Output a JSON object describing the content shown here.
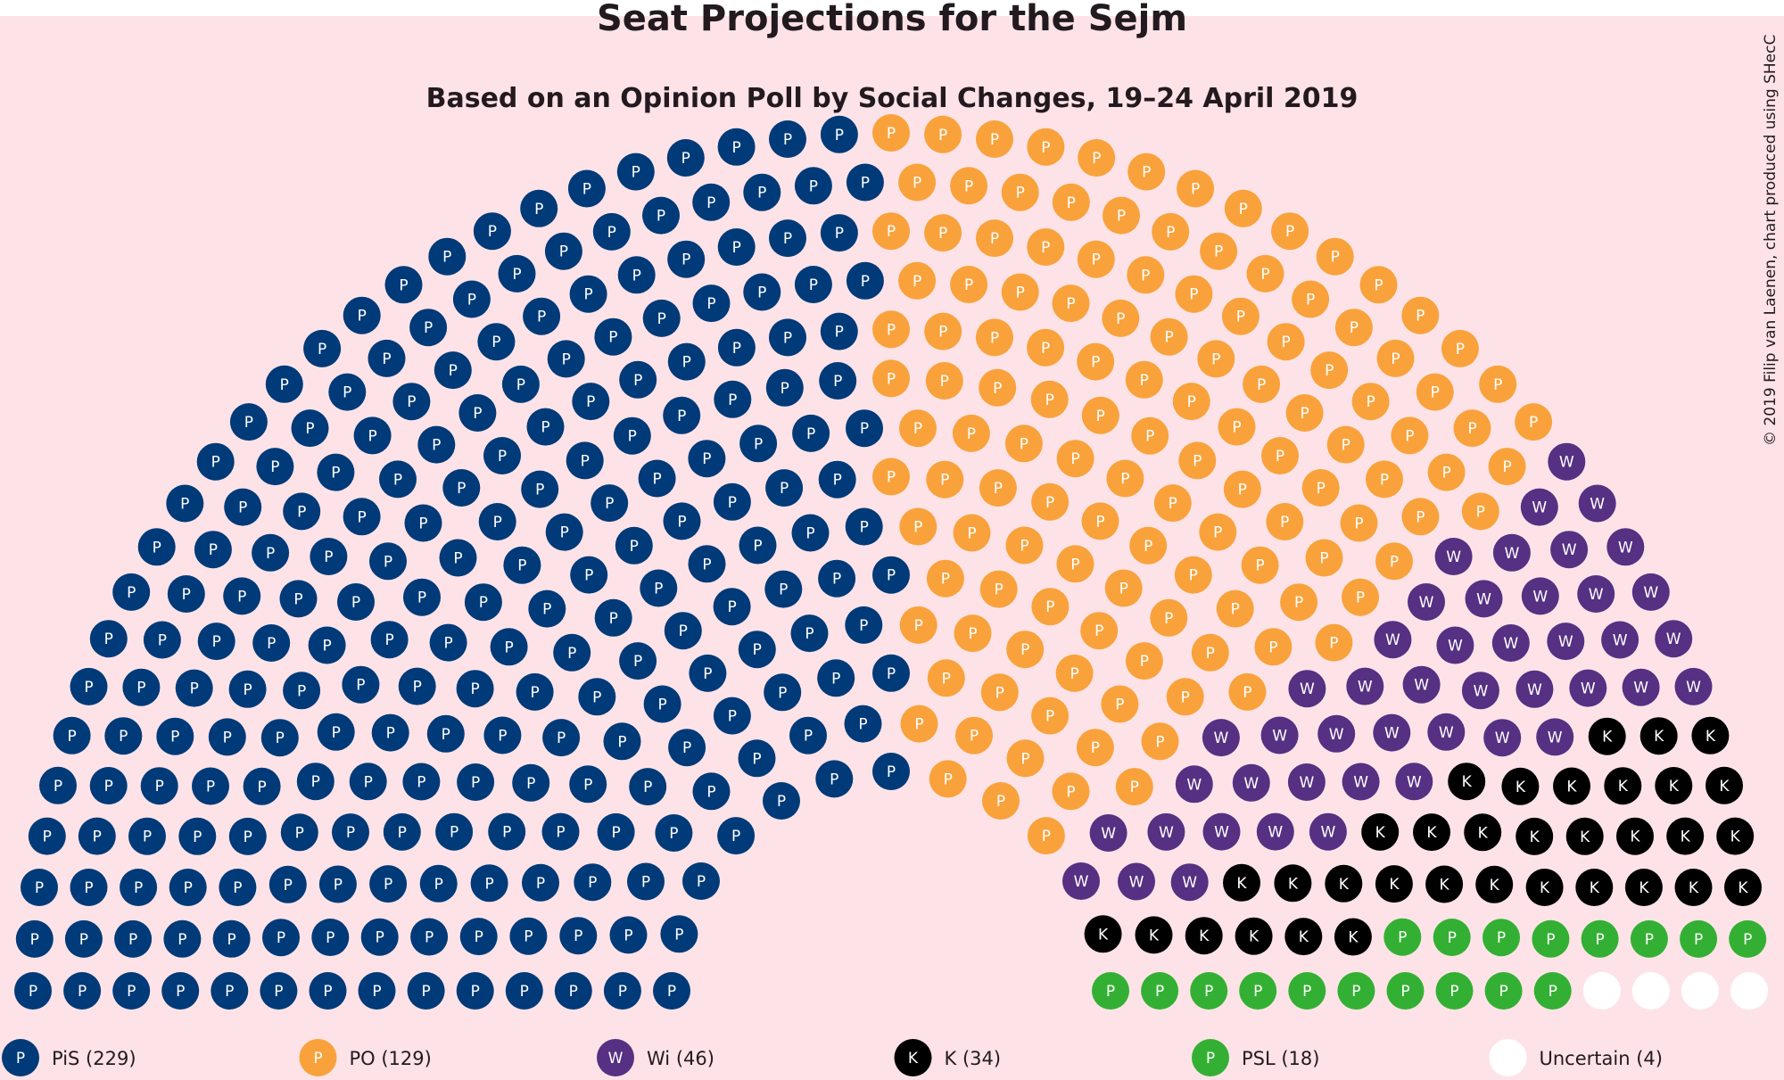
{
  "chart_data": {
    "type": "parliament",
    "title": "Seat Projections for the Sejm",
    "subtitle": "Based on an Opinion Poll by Social Changes, 19–24 April 2019",
    "credit": "© 2019 Filip van Laenen, chart produced using SHecC",
    "total_seats": 460,
    "background_color": "#fde3e7",
    "parties": [
      {
        "id": "pis",
        "letter": "P",
        "color": "#003a78",
        "text_color": "#ffffff",
        "seats": 229,
        "legend": "PiS (229)"
      },
      {
        "id": "po",
        "letter": "P",
        "color": "#f9a23c",
        "text_color": "#ffffff",
        "seats": 129,
        "legend": "PO (129)"
      },
      {
        "id": "wi",
        "letter": "W",
        "color": "#563082",
        "text_color": "#ffffff",
        "seats": 46,
        "legend": "Wi (46)"
      },
      {
        "id": "k",
        "letter": "K",
        "color": "#000000",
        "text_color": "#ffffff",
        "seats": 34,
        "legend": "K (34)"
      },
      {
        "id": "psl",
        "letter": "P",
        "color": "#33b033",
        "text_color": "#ffffff",
        "seats": 18,
        "legend": "PSL (18)"
      },
      {
        "id": "uncertain",
        "letter": "",
        "color": "#ffffff",
        "text_color": "#ffffff",
        "seats": 4,
        "legend": "Uncertain (4)"
      }
    ]
  }
}
